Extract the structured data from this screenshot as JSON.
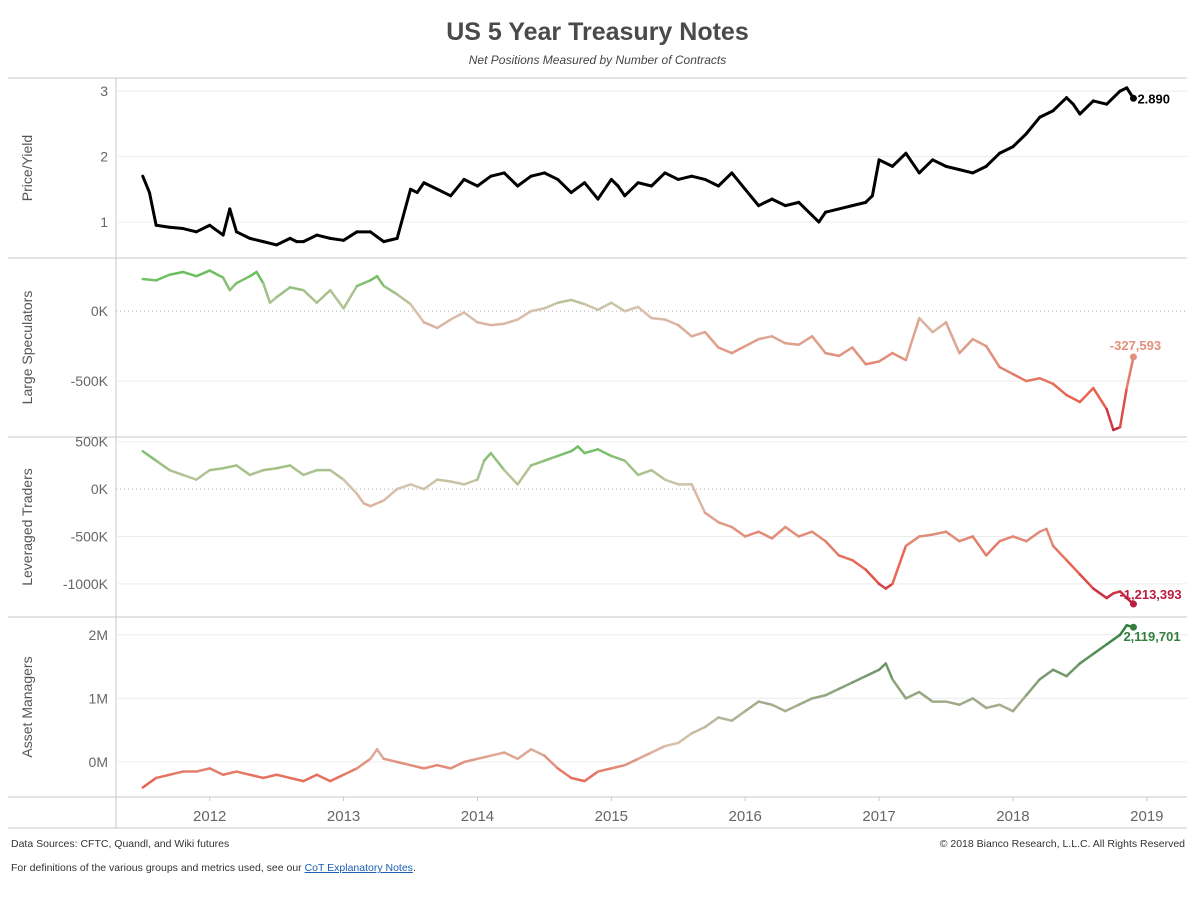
{
  "title": "US 5 Year Treasury Notes",
  "subtitle": "Net Positions Measured by Number of Contracts",
  "footer": {
    "sources": "Data Sources: CFTC, Quandl, and Wiki futures",
    "copyright": "© 2018 Bianco Research, L.L.C. All Rights Reserved",
    "definitions_prefix": "For definitions of the various groups and metrics used, see our ",
    "definitions_link": "CoT Explanatory Notes",
    "definitions_suffix": "."
  },
  "colors": {
    "price": "#000000",
    "positive": "#6abf5e",
    "neutral": "#d9c3b0",
    "negative": "#e8604c",
    "deep_negative": "#b5163b",
    "asset_high": "#2e7d3c"
  },
  "chart_data": [
    {
      "type": "line",
      "ylabel": "Price/Yield",
      "ylim": [
        0.45,
        3.2
      ],
      "yticks": [
        1,
        2,
        3
      ],
      "ytick_labels": [
        "1",
        "2",
        "3"
      ],
      "color_mode": "black",
      "last_label": "2.890",
      "x": [
        2011.5,
        2011.55,
        2011.6,
        2011.7,
        2011.8,
        2011.9,
        2012.0,
        2012.1,
        2012.15,
        2012.2,
        2012.3,
        2012.4,
        2012.5,
        2012.6,
        2012.65,
        2012.7,
        2012.8,
        2012.9,
        2013.0,
        2013.1,
        2013.2,
        2013.3,
        2013.4,
        2013.5,
        2013.55,
        2013.6,
        2013.7,
        2013.8,
        2013.9,
        2014.0,
        2014.1,
        2014.2,
        2014.3,
        2014.4,
        2014.5,
        2014.6,
        2014.7,
        2014.8,
        2014.9,
        2015.0,
        2015.05,
        2015.1,
        2015.2,
        2015.3,
        2015.4,
        2015.5,
        2015.6,
        2015.7,
        2015.8,
        2015.9,
        2016.0,
        2016.1,
        2016.2,
        2016.3,
        2016.4,
        2016.5,
        2016.55,
        2016.6,
        2016.7,
        2016.8,
        2016.9,
        2016.95,
        2017.0,
        2017.1,
        2017.2,
        2017.3,
        2017.4,
        2017.5,
        2017.6,
        2017.7,
        2017.8,
        2017.9,
        2018.0,
        2018.1,
        2018.2,
        2018.3,
        2018.4,
        2018.45,
        2018.5,
        2018.6,
        2018.7,
        2018.8,
        2018.85,
        2018.9
      ],
      "y": [
        1.7,
        1.45,
        0.95,
        0.92,
        0.9,
        0.85,
        0.95,
        0.8,
        1.2,
        0.85,
        0.75,
        0.7,
        0.65,
        0.75,
        0.7,
        0.7,
        0.8,
        0.75,
        0.72,
        0.85,
        0.85,
        0.7,
        0.75,
        1.5,
        1.45,
        1.6,
        1.5,
        1.4,
        1.65,
        1.55,
        1.7,
        1.75,
        1.55,
        1.7,
        1.75,
        1.65,
        1.45,
        1.6,
        1.35,
        1.65,
        1.55,
        1.4,
        1.6,
        1.55,
        1.75,
        1.65,
        1.7,
        1.65,
        1.55,
        1.75,
        1.5,
        1.25,
        1.35,
        1.25,
        1.3,
        1.1,
        1.0,
        1.15,
        1.2,
        1.25,
        1.3,
        1.4,
        1.95,
        1.85,
        2.05,
        1.75,
        1.95,
        1.85,
        1.8,
        1.75,
        1.85,
        2.05,
        2.15,
        2.35,
        2.6,
        2.7,
        2.9,
        2.8,
        2.65,
        2.85,
        2.8,
        3.0,
        3.05,
        2.89
      ]
    },
    {
      "type": "line",
      "ylabel": "Large Speculators",
      "ylim": [
        -900000,
        380000
      ],
      "yticks": [
        0,
        -500000
      ],
      "ytick_labels": [
        "0K",
        "-500K"
      ],
      "dotted_zero": true,
      "color_mode": "diverging",
      "color_scale": [
        -900000,
        250000
      ],
      "last_label": "-327,593",
      "x": [
        2011.5,
        2011.6,
        2011.7,
        2011.8,
        2011.9,
        2012.0,
        2012.1,
        2012.15,
        2012.2,
        2012.3,
        2012.35,
        2012.4,
        2012.45,
        2012.5,
        2012.6,
        2012.7,
        2012.8,
        2012.9,
        2013.0,
        2013.1,
        2013.2,
        2013.25,
        2013.3,
        2013.4,
        2013.5,
        2013.6,
        2013.7,
        2013.8,
        2013.9,
        2014.0,
        2014.1,
        2014.2,
        2014.3,
        2014.4,
        2014.5,
        2014.6,
        2014.7,
        2014.8,
        2014.9,
        2015.0,
        2015.1,
        2015.2,
        2015.3,
        2015.4,
        2015.5,
        2015.6,
        2015.7,
        2015.8,
        2015.9,
        2016.0,
        2016.1,
        2016.2,
        2016.3,
        2016.4,
        2016.5,
        2016.6,
        2016.7,
        2016.8,
        2016.9,
        2017.0,
        2017.1,
        2017.2,
        2017.3,
        2017.4,
        2017.5,
        2017.6,
        2017.7,
        2017.8,
        2017.9,
        2018.0,
        2018.1,
        2018.2,
        2018.3,
        2018.4,
        2018.5,
        2018.6,
        2018.7,
        2018.75,
        2018.8,
        2018.85,
        2018.9
      ],
      "y": [
        230000,
        220000,
        260000,
        280000,
        250000,
        290000,
        240000,
        150000,
        200000,
        250000,
        280000,
        200000,
        60000,
        100000,
        170000,
        150000,
        60000,
        150000,
        20000,
        180000,
        220000,
        250000,
        180000,
        120000,
        50000,
        -80000,
        -120000,
        -60000,
        -10000,
        -80000,
        -100000,
        -90000,
        -60000,
        0,
        20000,
        60000,
        80000,
        50000,
        10000,
        60000,
        0,
        30000,
        -50000,
        -60000,
        -100000,
        -180000,
        -150000,
        -260000,
        -300000,
        -250000,
        -200000,
        -180000,
        -230000,
        -240000,
        -180000,
        -300000,
        -320000,
        -260000,
        -380000,
        -360000,
        -300000,
        -350000,
        -50000,
        -150000,
        -80000,
        -300000,
        -200000,
        -250000,
        -400000,
        -450000,
        -500000,
        -480000,
        -520000,
        -600000,
        -650000,
        -550000,
        -700000,
        -850000,
        -830000,
        -550000,
        -327593
      ]
    },
    {
      "type": "line",
      "ylabel": "Leveraged Traders",
      "ylim": [
        -1350000,
        550000
      ],
      "yticks": [
        500000,
        0,
        -500000,
        -1000000
      ],
      "ytick_labels": [
        "500K",
        "0K",
        "-500K",
        "-1000K"
      ],
      "dotted_zero": true,
      "color_mode": "diverging",
      "color_scale": [
        -1250000,
        450000
      ],
      "last_label": "-1,213,393",
      "x": [
        2011.5,
        2011.6,
        2011.7,
        2011.8,
        2011.9,
        2012.0,
        2012.1,
        2012.2,
        2012.3,
        2012.4,
        2012.5,
        2012.6,
        2012.7,
        2012.8,
        2012.9,
        2013.0,
        2013.1,
        2013.15,
        2013.2,
        2013.3,
        2013.4,
        2013.5,
        2013.6,
        2013.7,
        2013.8,
        2013.9,
        2014.0,
        2014.05,
        2014.1,
        2014.2,
        2014.3,
        2014.4,
        2014.5,
        2014.6,
        2014.7,
        2014.75,
        2014.8,
        2014.9,
        2015.0,
        2015.1,
        2015.2,
        2015.3,
        2015.4,
        2015.5,
        2015.6,
        2015.7,
        2015.8,
        2015.9,
        2016.0,
        2016.1,
        2016.2,
        2016.3,
        2016.4,
        2016.5,
        2016.6,
        2016.7,
        2016.8,
        2016.9,
        2017.0,
        2017.05,
        2017.1,
        2017.2,
        2017.3,
        2017.4,
        2017.5,
        2017.6,
        2017.7,
        2017.8,
        2017.9,
        2018.0,
        2018.1,
        2018.2,
        2018.25,
        2018.3,
        2018.4,
        2018.5,
        2018.6,
        2018.7,
        2018.75,
        2018.8,
        2018.85,
        2018.9
      ],
      "y": [
        400000,
        300000,
        200000,
        150000,
        100000,
        200000,
        220000,
        250000,
        150000,
        200000,
        220000,
        250000,
        150000,
        200000,
        200000,
        100000,
        -50000,
        -150000,
        -180000,
        -120000,
        0,
        50000,
        0,
        100000,
        80000,
        50000,
        100000,
        300000,
        380000,
        200000,
        50000,
        250000,
        300000,
        350000,
        400000,
        450000,
        380000,
        420000,
        350000,
        300000,
        150000,
        200000,
        100000,
        50000,
        50000,
        -250000,
        -350000,
        -400000,
        -500000,
        -450000,
        -520000,
        -400000,
        -500000,
        -450000,
        -550000,
        -700000,
        -750000,
        -850000,
        -1000000,
        -1050000,
        -1000000,
        -600000,
        -500000,
        -480000,
        -450000,
        -550000,
        -500000,
        -700000,
        -550000,
        -500000,
        -550000,
        -450000,
        -420000,
        -600000,
        -750000,
        -900000,
        -1050000,
        -1150000,
        -1100000,
        -1080000,
        -1150000,
        -1213393
      ]
    },
    {
      "type": "line",
      "ylabel": "Asset Managers",
      "ylim": [
        -550000,
        2280000
      ],
      "yticks": [
        0,
        1000000,
        2000000
      ],
      "ytick_labels": [
        "0M",
        "1M",
        "2M"
      ],
      "color_mode": "asset",
      "color_scale": [
        -350000,
        2150000
      ],
      "last_label": "2,119,701",
      "x": [
        2011.5,
        2011.6,
        2011.7,
        2011.8,
        2011.9,
        2012.0,
        2012.1,
        2012.2,
        2012.3,
        2012.4,
        2012.5,
        2012.6,
        2012.7,
        2012.8,
        2012.9,
        2013.0,
        2013.1,
        2013.2,
        2013.25,
        2013.3,
        2013.4,
        2013.5,
        2013.6,
        2013.7,
        2013.8,
        2013.9,
        2014.0,
        2014.1,
        2014.2,
        2014.3,
        2014.4,
        2014.5,
        2014.6,
        2014.7,
        2014.8,
        2014.9,
        2015.0,
        2015.1,
        2015.2,
        2015.3,
        2015.4,
        2015.5,
        2015.6,
        2015.7,
        2015.8,
        2015.9,
        2016.0,
        2016.1,
        2016.2,
        2016.3,
        2016.4,
        2016.5,
        2016.6,
        2016.7,
        2016.8,
        2016.9,
        2017.0,
        2017.05,
        2017.1,
        2017.2,
        2017.3,
        2017.4,
        2017.5,
        2017.6,
        2017.7,
        2017.8,
        2017.9,
        2018.0,
        2018.1,
        2018.2,
        2018.3,
        2018.4,
        2018.5,
        2018.6,
        2018.7,
        2018.8,
        2018.85,
        2018.9
      ],
      "y": [
        -400000,
        -250000,
        -200000,
        -150000,
        -150000,
        -100000,
        -200000,
        -150000,
        -200000,
        -250000,
        -200000,
        -250000,
        -300000,
        -200000,
        -300000,
        -200000,
        -100000,
        50000,
        200000,
        50000,
        0,
        -50000,
        -100000,
        -50000,
        -100000,
        0,
        50000,
        100000,
        150000,
        50000,
        200000,
        100000,
        -100000,
        -250000,
        -300000,
        -150000,
        -100000,
        -50000,
        50000,
        150000,
        250000,
        300000,
        450000,
        550000,
        700000,
        650000,
        800000,
        950000,
        900000,
        800000,
        900000,
        1000000,
        1050000,
        1150000,
        1250000,
        1350000,
        1450000,
        1550000,
        1300000,
        1000000,
        1100000,
        950000,
        950000,
        900000,
        1000000,
        850000,
        900000,
        800000,
        1050000,
        1300000,
        1450000,
        1350000,
        1550000,
        1700000,
        1850000,
        2000000,
        2150000,
        2119701
      ]
    }
  ],
  "x_axis": {
    "ticks": [
      2012,
      2013,
      2014,
      2015,
      2016,
      2017,
      2018,
      2019
    ],
    "labels": [
      "2012",
      "2013",
      "2014",
      "2015",
      "2016",
      "2017",
      "2018",
      "2019"
    ],
    "range": [
      2011.3,
      2019.3
    ]
  }
}
